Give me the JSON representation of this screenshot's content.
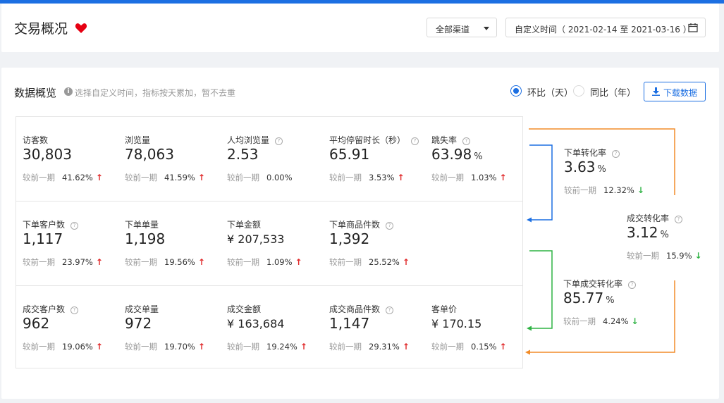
{
  "header": {
    "title": "交易概况",
    "channel_select": "全部渠道",
    "date_range": "自定义时间（ 2021-02-14 至 2021-03-16 ）"
  },
  "overview": {
    "title": "数据概览",
    "hint": "选择自定义时间，指标按天累加，暂不去重",
    "radio_mom": "环比（天）",
    "radio_yoy": "同比（年）",
    "download": "下载数据",
    "compare_label": "较前一期"
  },
  "metrics": [
    {
      "label": "访客数",
      "value": "30,803",
      "unit": "",
      "pct": "41.62%",
      "trend": "up",
      "help": false
    },
    {
      "label": "浏览量",
      "value": "78,063",
      "unit": "",
      "pct": "41.59%",
      "trend": "up",
      "help": false
    },
    {
      "label": "人均浏览量",
      "value": "2.53",
      "unit": "",
      "pct": "0.00%",
      "trend": "none",
      "help": true
    },
    {
      "label": "平均停留时长（秒）",
      "value": "65.91",
      "unit": "",
      "pct": "3.53%",
      "trend": "up",
      "help": true
    },
    {
      "label": "跳失率",
      "value": "63.98",
      "unit": "%",
      "pct": "1.03%",
      "trend": "up",
      "help": true
    },
    {
      "label": "下单客户数",
      "value": "1,117",
      "unit": "",
      "pct": "23.97%",
      "trend": "up",
      "help": true
    },
    {
      "label": "下单单量",
      "value": "1,198",
      "unit": "",
      "pct": "19.56%",
      "trend": "up",
      "help": false
    },
    {
      "label": "下单金额",
      "value": "¥ 207,533",
      "unit": "",
      "pct": "1.09%",
      "trend": "up",
      "help": false
    },
    {
      "label": "下单商品件数",
      "value": "1,392",
      "unit": "",
      "pct": "25.52%",
      "trend": "up",
      "help": true
    },
    {
      "label": "成交客户数",
      "value": "962",
      "unit": "",
      "pct": "19.06%",
      "trend": "up",
      "help": true
    },
    {
      "label": "成交单量",
      "value": "972",
      "unit": "",
      "pct": "19.70%",
      "trend": "up",
      "help": false
    },
    {
      "label": "成交金额",
      "value": "¥ 163,684",
      "unit": "",
      "pct": "19.24%",
      "trend": "up",
      "help": false
    },
    {
      "label": "成交商品件数",
      "value": "1,147",
      "unit": "",
      "pct": "29.31%",
      "trend": "up",
      "help": true
    },
    {
      "label": "客单价",
      "value": "¥ 170.15",
      "unit": "",
      "pct": "0.15%",
      "trend": "up",
      "help": false
    }
  ],
  "conversions": [
    {
      "label": "下单转化率",
      "value": "3.63",
      "unit": "%",
      "pct": "12.32%",
      "trend": "down"
    },
    {
      "label": "成交转化率",
      "value": "3.12",
      "unit": "%",
      "pct": "15.9%",
      "trend": "down"
    },
    {
      "label": "下单成交转化率",
      "value": "85.77",
      "unit": "%",
      "pct": "4.24%",
      "trend": "down"
    }
  ],
  "colors": {
    "primary": "#1c6fe2",
    "up": "#e0292a",
    "down": "#2fb344",
    "flow_orange": "#f28c28",
    "flow_blue": "#1c6fe2",
    "flow_green": "#2fb344"
  }
}
